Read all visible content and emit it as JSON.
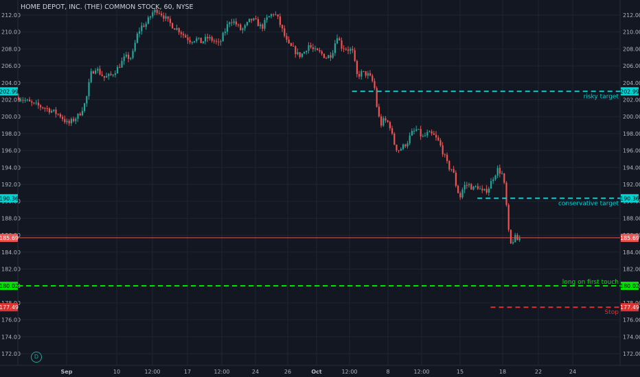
{
  "header": {
    "symbol_title": "HOME DEPOT, INC. (THE) COMMON STOCK, 60, NYSE"
  },
  "logo": {
    "glyph": "D"
  },
  "colors": {
    "background": "#131722",
    "grid": "#1e2431",
    "up": "#26a69a",
    "down": "#ef5350",
    "target": "#00d4d4",
    "long": "#00e600",
    "stop": "#e03030",
    "price": "#ef5350"
  },
  "chart_data": {
    "type": "candlestick",
    "title": "HOME DEPOT, INC. (THE) COMMON STOCK, 60, NYSE",
    "ylim": [
      171,
      213
    ],
    "y_ticks": [
      "172.00",
      "174.00",
      "176.00",
      "178.00",
      "180.00",
      "182.00",
      "184.00",
      "186.00",
      "188.00",
      "190.00",
      "192.00",
      "194.00",
      "196.00",
      "198.00",
      "200.00",
      "202.00",
      "204.00",
      "206.00",
      "208.00",
      "210.00",
      "212.00"
    ],
    "x_ticks": [
      "Sep",
      "10",
      "12:00",
      "17",
      "12:00",
      "24",
      "26",
      "Oct",
      "12:00",
      "8",
      "12:00",
      "15",
      "18",
      "22",
      "24"
    ],
    "grid": true,
    "price_path": [
      [
        0,
        202.3
      ],
      [
        20,
        201.5
      ],
      [
        40,
        201.0
      ],
      [
        60,
        200.2
      ],
      [
        72,
        199.1
      ],
      [
        88,
        200.2
      ],
      [
        98,
        201.8
      ],
      [
        105,
        205.0
      ],
      [
        112,
        205.8
      ],
      [
        118,
        205.2
      ],
      [
        125,
        204.6
      ],
      [
        135,
        204.9
      ],
      [
        145,
        205.8
      ],
      [
        155,
        207.0
      ],
      [
        165,
        207.0
      ],
      [
        172,
        209.5
      ],
      [
        178,
        210.6
      ],
      [
        186,
        211.0
      ],
      [
        195,
        212.3
      ],
      [
        202,
        212.6
      ],
      [
        210,
        212.0
      ],
      [
        218,
        211.2
      ],
      [
        226,
        210.6
      ],
      [
        234,
        210.2
      ],
      [
        242,
        209.5
      ],
      [
        250,
        209.0
      ],
      [
        258,
        209.2
      ],
      [
        266,
        208.8
      ],
      [
        275,
        209.3
      ],
      [
        284,
        209.0
      ],
      [
        292,
        208.5
      ],
      [
        300,
        210.0
      ],
      [
        308,
        211.5
      ],
      [
        316,
        211.0
      ],
      [
        324,
        210.2
      ],
      [
        330,
        210.6
      ],
      [
        338,
        211.5
      ],
      [
        346,
        211.2
      ],
      [
        354,
        210.5
      ],
      [
        362,
        211.6
      ],
      [
        372,
        212.3
      ],
      [
        378,
        211.5
      ],
      [
        385,
        210.0
      ],
      [
        392,
        208.5
      ],
      [
        400,
        208.0
      ],
      [
        408,
        207.2
      ],
      [
        415,
        207.5
      ],
      [
        422,
        208.5
      ],
      [
        430,
        207.8
      ],
      [
        440,
        207.5
      ],
      [
        448,
        207.0
      ],
      [
        456,
        207.4
      ],
      [
        464,
        209.6
      ],
      [
        470,
        208.3
      ],
      [
        478,
        208.0
      ],
      [
        486,
        207.8
      ],
      [
        493,
        204.8
      ],
      [
        500,
        205.2
      ],
      [
        508,
        205.0
      ],
      [
        514,
        204.4
      ],
      [
        518,
        203.6
      ],
      [
        522,
        201.0
      ],
      [
        527,
        199.0
      ],
      [
        532,
        199.6
      ],
      [
        540,
        199.2
      ],
      [
        546,
        197.0
      ],
      [
        552,
        196.0
      ],
      [
        558,
        196.3
      ],
      [
        566,
        197.0
      ],
      [
        572,
        198.0
      ],
      [
        580,
        198.5
      ],
      [
        588,
        197.5
      ],
      [
        596,
        198.0
      ],
      [
        604,
        197.8
      ],
      [
        612,
        197.0
      ],
      [
        618,
        195.8
      ],
      [
        626,
        194.0
      ],
      [
        632,
        193.8
      ],
      [
        638,
        191.5
      ],
      [
        643,
        190.5
      ],
      [
        648,
        191.8
      ],
      [
        655,
        192.0
      ],
      [
        662,
        191.5
      ],
      [
        668,
        191.8
      ],
      [
        676,
        191.0
      ],
      [
        684,
        191.5
      ],
      [
        692,
        193.0
      ],
      [
        698,
        193.8
      ],
      [
        704,
        193.2
      ],
      [
        708,
        191.6
      ],
      [
        712,
        188.0
      ],
      [
        715,
        184.8
      ],
      [
        718,
        185.0
      ],
      [
        722,
        185.8
      ],
      [
        726,
        185.4
      ],
      [
        730,
        185.6
      ]
    ],
    "levels": [
      {
        "name": "risky target",
        "label": "risky target",
        "value": 202.99,
        "tag": "202.99",
        "style": "target",
        "x_start": 0.555
      },
      {
        "name": "conservative target",
        "label": "conservative target",
        "value": 190.36,
        "tag": "190.36",
        "style": "target",
        "x_start": 0.763
      },
      {
        "name": "long on first touch",
        "label": "long on first touch",
        "value": 180.02,
        "tag": "180.02",
        "style": "long",
        "x_start": 0.0
      },
      {
        "name": "Stop",
        "label": "Stop",
        "value": 177.49,
        "tag": "177.49",
        "style": "stop",
        "x_start": 0.785
      }
    ],
    "last_price": {
      "value": 185.69,
      "tag": "185.69"
    }
  }
}
